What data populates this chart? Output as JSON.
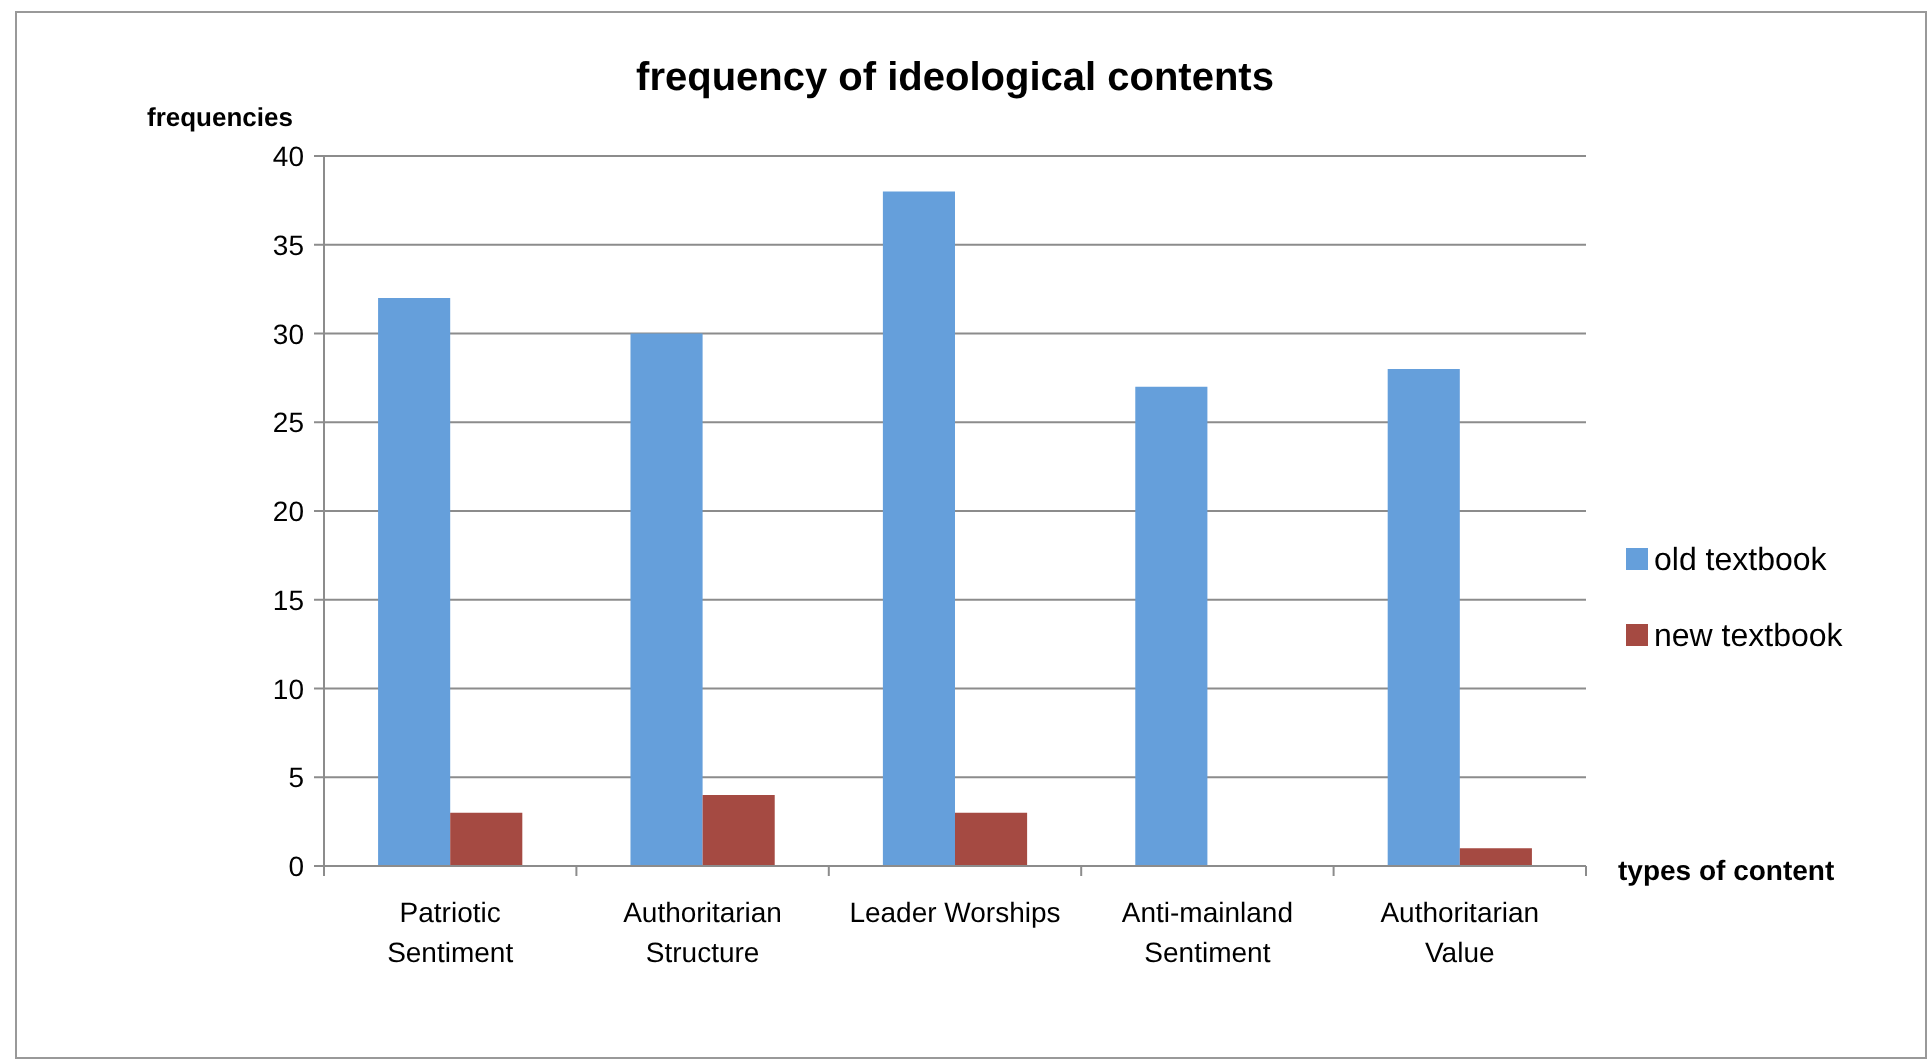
{
  "chart_data": {
    "type": "bar",
    "title": "frequency of ideological contents",
    "xlabel": "types of content",
    "ylabel": "frequencies",
    "categories": [
      "Patriotic Sentiment",
      "Authoritarian Structure",
      "Leader Worships",
      "Anti-mainland Sentiment",
      "Authoritarian Value"
    ],
    "series": [
      {
        "name": "old textbook",
        "color": "#659fdb",
        "values": [
          32,
          30,
          38,
          27,
          28
        ]
      },
      {
        "name": "new textbook",
        "color": "#a54a42",
        "values": [
          3,
          4,
          3,
          0,
          1
        ]
      }
    ],
    "ylim": [
      0,
      40
    ],
    "yticks": [
      0,
      5,
      10,
      15,
      20,
      25,
      30,
      35,
      40
    ],
    "grid": "y",
    "legend": "right"
  }
}
